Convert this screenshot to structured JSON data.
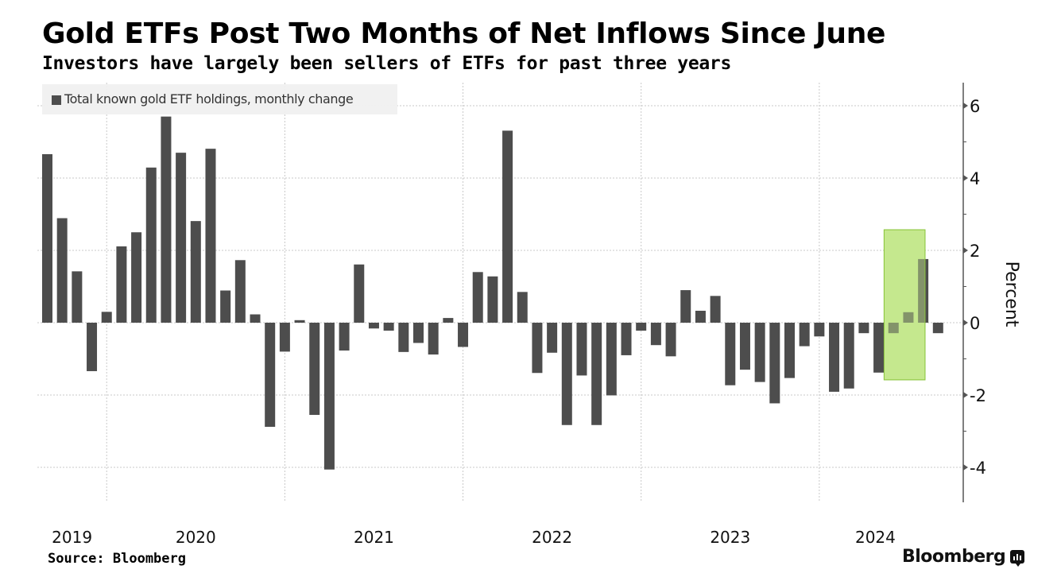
{
  "header": {
    "title": "Gold ETFs Post Two Months of Net Inflows Since June",
    "subtitle": "Investors have largely been sellers of ETFs for past three years"
  },
  "footer": {
    "source": "Source: Bloomberg",
    "brand": "Bloomberg",
    "brand_icon": "bloomberg-terminal-icon"
  },
  "colors": {
    "bar": "#4d4d4d",
    "highlight_fill": "#c5e88f",
    "highlight_stroke": "#8cc63f",
    "highlighted_bar": "#5a7a2e",
    "grid": "#c8c8c8",
    "axis": "#555555"
  },
  "chart_data": {
    "type": "bar",
    "title": "Gold ETFs Post Two Months of Net Inflows Since June",
    "subtitle": "Investors have largely been sellers of ETFs for past three years",
    "legend": [
      "Total known gold ETF holdings, monthly change"
    ],
    "legend_position": "top-left",
    "xlabel": "",
    "ylabel": "Percent",
    "y_axis_side": "right",
    "ylim": [
      -5,
      6.6
    ],
    "yticks": [
      6,
      4,
      2,
      0,
      -2,
      -4
    ],
    "ytick_labels": [
      "6",
      "4",
      "2",
      "0",
      "-2",
      "-4"
    ],
    "grid": true,
    "x_year_labels": [
      "2019",
      "2020",
      "2021",
      "2022",
      "2023",
      "2024"
    ],
    "categories": [
      "2019-09",
      "2019-10",
      "2019-11",
      "2019-12",
      "2020-01",
      "2020-02",
      "2020-03",
      "2020-04",
      "2020-05",
      "2020-06",
      "2020-07",
      "2020-08",
      "2020-09",
      "2020-10",
      "2020-11",
      "2020-12",
      "2021-01",
      "2021-02",
      "2021-03",
      "2021-04",
      "2021-05",
      "2021-06",
      "2021-07",
      "2021-08",
      "2021-09",
      "2021-10",
      "2021-11",
      "2021-12",
      "2022-01",
      "2022-02",
      "2022-03",
      "2022-04",
      "2022-05",
      "2022-06",
      "2022-07",
      "2022-08",
      "2022-09",
      "2022-10",
      "2022-11",
      "2022-12",
      "2023-01",
      "2023-02",
      "2023-03",
      "2023-04",
      "2023-05",
      "2023-06",
      "2023-07",
      "2023-08",
      "2023-09",
      "2023-10",
      "2023-11",
      "2023-12",
      "2024-01",
      "2024-02",
      "2024-03",
      "2024-04",
      "2024-05",
      "2024-06",
      "2024-07",
      "2024-08",
      "2024-09"
    ],
    "series": [
      {
        "name": "Total known gold ETF holdings, monthly change",
        "values": [
          4.66,
          2.89,
          1.42,
          -1.34,
          0.3,
          2.11,
          2.5,
          4.29,
          5.7,
          4.7,
          2.81,
          4.81,
          0.89,
          1.73,
          0.23,
          -2.88,
          -0.8,
          0.07,
          -2.55,
          -4.06,
          -0.77,
          1.61,
          -0.16,
          -0.22,
          -0.81,
          -0.56,
          -0.88,
          0.13,
          -0.67,
          1.4,
          1.28,
          5.31,
          0.85,
          -1.39,
          -0.83,
          -2.83,
          -1.46,
          -2.83,
          -2.01,
          -0.9,
          -0.22,
          -0.62,
          -0.93,
          0.9,
          0.33,
          0.74,
          -1.73,
          -1.3,
          -1.64,
          -2.23,
          -1.53,
          -0.65,
          -0.38,
          -1.91,
          -1.82,
          -0.29,
          -1.38,
          -0.29,
          0.29,
          1.76,
          -0.29
        ]
      }
    ],
    "annotations": [
      {
        "type": "highlight-box",
        "label": "",
        "x_range": [
          "2024-06",
          "2024-08"
        ],
        "y_range": [
          -1.58,
          2.57
        ]
      }
    ]
  }
}
